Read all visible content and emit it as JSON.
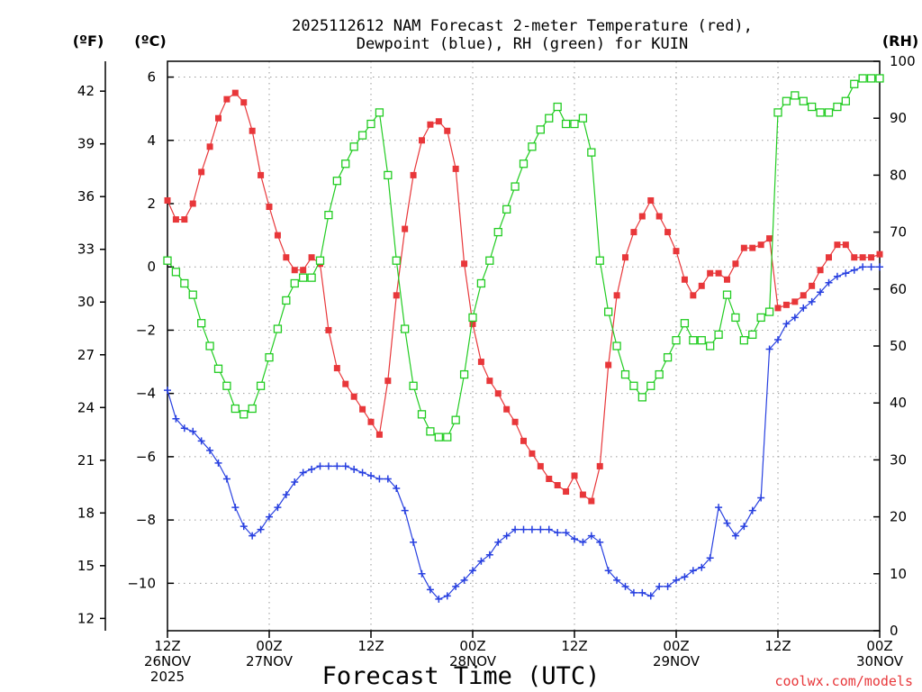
{
  "chart_data": {
    "type": "line",
    "title_lines": [
      "2025112612 NAM Forecast 2-meter Temperature (red),",
      "Dewpoint (blue), RH (green) for KUIN"
    ],
    "xlabel": "Forecast Time (UTC)",
    "credit": "coolwx.com/models",
    "units": {
      "fahrenheit": "(ºF)",
      "celsius": "(ºC)",
      "rh": "(RH)"
    },
    "x_range_hours": [
      0,
      84
    ],
    "x_ticks": [
      {
        "hour": 0,
        "lines": [
          "12Z",
          "26NOV",
          "2025"
        ]
      },
      {
        "hour": 12,
        "lines": [
          "00Z",
          "27NOV"
        ]
      },
      {
        "hour": 24,
        "lines": [
          "12Z"
        ]
      },
      {
        "hour": 36,
        "lines": [
          "00Z",
          "28NOV"
        ]
      },
      {
        "hour": 48,
        "lines": [
          "12Z"
        ]
      },
      {
        "hour": 60,
        "lines": [
          "00Z",
          "29NOV"
        ]
      },
      {
        "hour": 72,
        "lines": [
          "12Z"
        ]
      },
      {
        "hour": 84,
        "lines": [
          "00Z",
          "30NOV"
        ]
      }
    ],
    "y_celsius": {
      "min": -11.5,
      "max": 6.5,
      "ticks": [
        6,
        4,
        2,
        0,
        -2,
        -4,
        -6,
        -8,
        -10
      ],
      "tick_labels": [
        "6",
        "4",
        "2",
        "0",
        "−2",
        "−4",
        "−6",
        "−8",
        "−10"
      ]
    },
    "y_fahrenheit": {
      "ticks": [
        42,
        39,
        36,
        33,
        30,
        27,
        24,
        21,
        18,
        15,
        12
      ],
      "tick_labels": [
        "42",
        "39",
        "36",
        "33",
        "30",
        "27",
        "24",
        "21",
        "18",
        "15",
        "12"
      ]
    },
    "y_rh": {
      "min": 0,
      "max": 100,
      "ticks": [
        100,
        90,
        80,
        70,
        60,
        50,
        40,
        30,
        20,
        10,
        0
      ],
      "tick_labels": [
        "100",
        "90",
        "80",
        "70",
        "60",
        "50",
        "40",
        "30",
        "20",
        "10",
        "0"
      ]
    },
    "series": [
      {
        "name": "Temperature (red)",
        "axis": "celsius",
        "color": "#e8373a",
        "marker": "filled-square",
        "x": [
          0,
          1,
          2,
          3,
          4,
          5,
          6,
          7,
          8,
          9,
          10,
          11,
          12,
          13,
          14,
          15,
          16,
          17,
          18,
          19,
          20,
          21,
          22,
          23,
          24,
          25,
          26,
          27,
          28,
          29,
          30,
          31,
          32,
          33,
          34,
          35,
          36,
          37,
          38,
          39,
          40,
          41,
          42,
          43,
          44,
          45,
          46,
          47,
          48,
          49,
          50,
          51,
          52,
          53,
          54,
          55,
          56,
          57,
          58,
          59,
          60,
          61,
          62,
          63,
          64,
          65,
          66,
          67,
          68,
          69,
          70,
          71,
          72,
          73,
          74,
          75,
          76,
          77,
          78,
          79,
          80,
          81,
          82,
          83,
          84
        ],
        "values": [
          2.1,
          1.5,
          1.5,
          2.0,
          3.0,
          3.8,
          4.7,
          5.3,
          5.5,
          5.2,
          4.3,
          2.9,
          1.9,
          1.0,
          0.3,
          -0.1,
          -0.1,
          0.3,
          0.1,
          -2.0,
          -3.2,
          -3.7,
          -4.1,
          -4.5,
          -4.9,
          -5.3,
          -3.6,
          -0.9,
          1.2,
          2.9,
          4.0,
          4.5,
          4.6,
          4.3,
          3.1,
          0.1,
          -1.8,
          -3.0,
          -3.6,
          -4.0,
          -4.5,
          -4.9,
          -5.5,
          -5.9,
          -6.3,
          -6.7,
          -6.9,
          -7.1,
          -6.6,
          -7.2,
          -7.4,
          -6.3,
          -3.1,
          -0.9,
          0.3,
          1.1,
          1.6,
          2.1,
          1.6,
          1.1,
          0.5,
          -0.4,
          -0.9,
          -0.6,
          -0.2,
          -0.2,
          -0.4,
          0.1,
          0.6,
          0.6,
          0.7,
          0.9,
          -1.3,
          -1.2,
          -1.1,
          -0.9,
          -0.6,
          -0.1,
          0.3,
          0.7,
          0.7,
          0.3,
          0.3,
          0.3,
          0.4
        ]
      },
      {
        "name": "Dewpoint (blue)",
        "axis": "celsius",
        "color": "#2840e0",
        "marker": "plus",
        "x": [
          0,
          1,
          2,
          3,
          4,
          5,
          6,
          7,
          8,
          9,
          10,
          11,
          12,
          13,
          14,
          15,
          16,
          17,
          18,
          19,
          20,
          21,
          22,
          23,
          24,
          25,
          26,
          27,
          28,
          29,
          30,
          31,
          32,
          33,
          34,
          35,
          36,
          37,
          38,
          39,
          40,
          41,
          42,
          43,
          44,
          45,
          46,
          47,
          48,
          49,
          50,
          51,
          52,
          53,
          54,
          55,
          56,
          57,
          58,
          59,
          60,
          61,
          62,
          63,
          64,
          65,
          66,
          67,
          68,
          69,
          70,
          71,
          72,
          73,
          74,
          75,
          76,
          77,
          78,
          79,
          80,
          81,
          82,
          83,
          84
        ],
        "values": [
          -3.9,
          -4.8,
          -5.1,
          -5.2,
          -5.5,
          -5.8,
          -6.2,
          -6.7,
          -7.6,
          -8.2,
          -8.5,
          -8.3,
          -7.9,
          -7.6,
          -7.2,
          -6.8,
          -6.5,
          -6.4,
          -6.3,
          -6.3,
          -6.3,
          -6.3,
          -6.4,
          -6.5,
          -6.6,
          -6.7,
          -6.7,
          -7.0,
          -7.7,
          -8.7,
          -9.7,
          -10.2,
          -10.5,
          -10.4,
          -10.1,
          -9.9,
          -9.6,
          -9.3,
          -9.1,
          -8.7,
          -8.5,
          -8.3,
          -8.3,
          -8.3,
          -8.3,
          -8.3,
          -8.4,
          -8.4,
          -8.6,
          -8.7,
          -8.5,
          -8.7,
          -9.6,
          -9.9,
          -10.1,
          -10.3,
          -10.3,
          -10.4,
          -10.1,
          -10.1,
          -9.9,
          -9.8,
          -9.6,
          -9.5,
          -9.2,
          -7.6,
          -8.1,
          -8.5,
          -8.2,
          -7.7,
          -7.3,
          -2.6,
          -2.3,
          -1.8,
          -1.6,
          -1.3,
          -1.1,
          -0.8,
          -0.5,
          -0.3,
          -0.2,
          -0.1,
          0.0,
          0.0,
          0.0
        ]
      },
      {
        "name": "RH (green)",
        "axis": "rh",
        "color": "#22cc22",
        "marker": "open-square",
        "x": [
          0,
          1,
          2,
          3,
          4,
          5,
          6,
          7,
          8,
          9,
          10,
          11,
          12,
          13,
          14,
          15,
          16,
          17,
          18,
          19,
          20,
          21,
          22,
          23,
          24,
          25,
          26,
          27,
          28,
          29,
          30,
          31,
          32,
          33,
          34,
          35,
          36,
          37,
          38,
          39,
          40,
          41,
          42,
          43,
          44,
          45,
          46,
          47,
          48,
          49,
          50,
          51,
          52,
          53,
          54,
          55,
          56,
          57,
          58,
          59,
          60,
          61,
          62,
          63,
          64,
          65,
          66,
          67,
          68,
          69,
          70,
          71,
          72,
          73,
          74,
          75,
          76,
          77,
          78,
          79,
          80,
          81,
          82,
          83,
          84
        ],
        "values": [
          65,
          63,
          61,
          59,
          54,
          50,
          46,
          43,
          39,
          38,
          39,
          43,
          48,
          53,
          58,
          61,
          62,
          62,
          65,
          73,
          79,
          82,
          85,
          87,
          89,
          91,
          80,
          65,
          53,
          43,
          38,
          35,
          34,
          34,
          37,
          45,
          55,
          61,
          65,
          70,
          74,
          78,
          82,
          85,
          88,
          90,
          92,
          89,
          89,
          90,
          84,
          65,
          56,
          50,
          45,
          43,
          41,
          43,
          45,
          48,
          51,
          54,
          51,
          51,
          50,
          52,
          59,
          55,
          51,
          52,
          55,
          56,
          91,
          93,
          94,
          93,
          92,
          91,
          91,
          92,
          93,
          96,
          97,
          97,
          97
        ]
      }
    ]
  }
}
